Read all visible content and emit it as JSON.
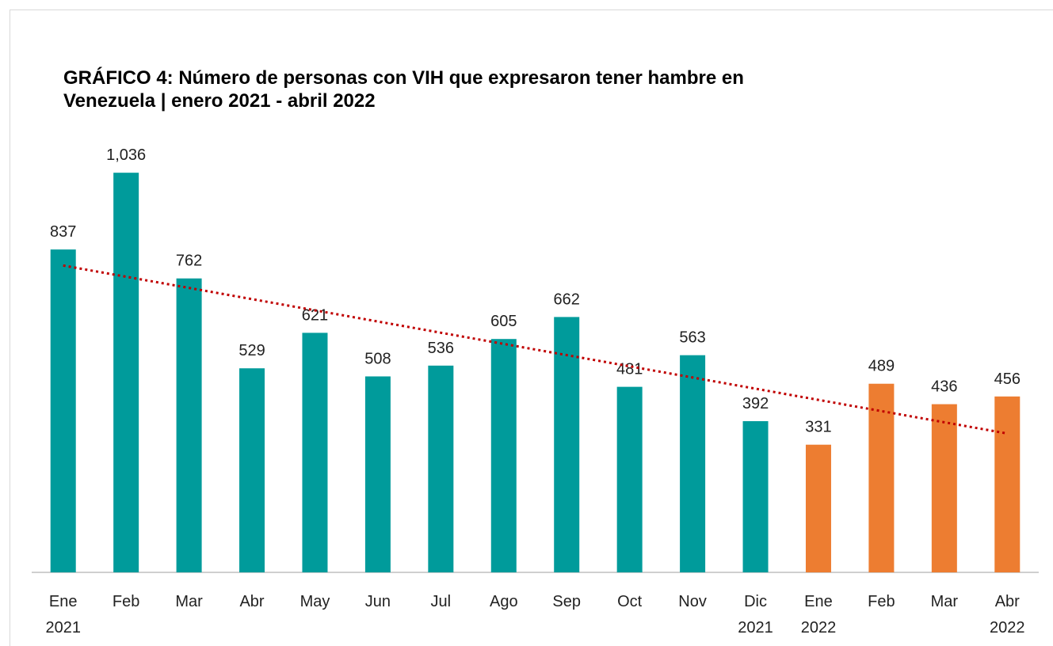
{
  "chart_data": {
    "type": "bar",
    "title": "GRÁFICO 4: Número de personas con VIH que expresaron tener hambre en Venezuela | enero 2021 - abril 2022",
    "categories": [
      "Ene\n2021",
      "Feb",
      "Mar",
      "Abr",
      "May",
      "Jun",
      "Jul",
      "Ago",
      "Sep",
      "Oct",
      "Nov",
      "Dic\n2021",
      "Ene\n2022",
      "Feb",
      "Mar",
      "Abr\n2022"
    ],
    "values": [
      837,
      1036,
      762,
      529,
      621,
      508,
      536,
      605,
      662,
      481,
      563,
      392,
      331,
      489,
      436,
      456
    ],
    "value_labels": [
      "837",
      "1,036",
      "762",
      "529",
      "621",
      "508",
      "536",
      "605",
      "662",
      "481",
      "563",
      "392",
      "331",
      "489",
      "436",
      "456"
    ],
    "colors": [
      "#009b9b",
      "#009b9b",
      "#009b9b",
      "#009b9b",
      "#009b9b",
      "#009b9b",
      "#009b9b",
      "#009b9b",
      "#009b9b",
      "#009b9b",
      "#009b9b",
      "#009b9b",
      "#ed7d31",
      "#ed7d31",
      "#ed7d31",
      "#ed7d31"
    ],
    "ylim": [
      0,
      1100
    ],
    "trendline": {
      "color": "#c00000"
    }
  }
}
